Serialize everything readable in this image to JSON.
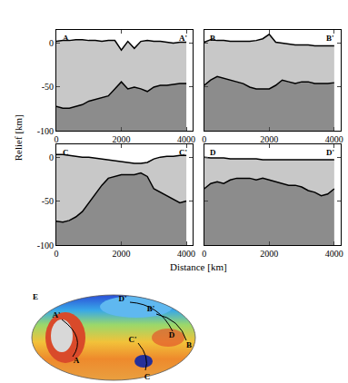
{
  "chart_data": [
    {
      "type": "line",
      "start_label": "A",
      "end_label": "A'",
      "x": [
        0,
        200,
        400,
        600,
        800,
        1000,
        1200,
        1400,
        1600,
        1800,
        2000,
        2200,
        2400,
        2600,
        2800,
        3000,
        3200,
        3400,
        3600,
        3800,
        4000
      ],
      "series": [
        {
          "color": "#c8c8c8",
          "values": [
            2,
            3,
            3,
            4,
            4,
            3,
            3,
            2,
            3,
            3,
            -8,
            2,
            -6,
            2,
            3,
            2,
            2,
            1,
            0,
            1,
            1
          ]
        },
        {
          "color": "#8c8c8c",
          "values": [
            -72,
            -74,
            -74,
            -72,
            -70,
            -66,
            -64,
            -62,
            -60,
            -52,
            -44,
            -52,
            -50,
            -52,
            -55,
            -50,
            -48,
            -48,
            -47,
            -46,
            -46
          ]
        }
      ],
      "xlim": [
        0,
        4200
      ],
      "ylim": [
        -100,
        15
      ],
      "xticks": [
        0,
        2000,
        4000
      ],
      "yticks": [
        -100,
        -50,
        0
      ]
    },
    {
      "type": "line",
      "start_label": "B",
      "end_label": "B'",
      "x": [
        0,
        200,
        400,
        600,
        800,
        1000,
        1200,
        1400,
        1600,
        1800,
        2000,
        2200,
        2400,
        2600,
        2800,
        3000,
        3200,
        3400,
        3600,
        3800,
        4000
      ],
      "series": [
        {
          "color": "#c8c8c8",
          "values": [
            1,
            4,
            3,
            3,
            2,
            2,
            2,
            2,
            3,
            5,
            10,
            1,
            0,
            -1,
            -2,
            -2,
            -2,
            -3,
            -3,
            -3,
            -3
          ]
        },
        {
          "color": "#8c8c8c",
          "values": [
            -48,
            -42,
            -38,
            -40,
            -42,
            -44,
            -46,
            -50,
            -52,
            -52,
            -52,
            -48,
            -42,
            -44,
            -46,
            -44,
            -44,
            -46,
            -46,
            -46,
            -45
          ]
        }
      ],
      "xlim": [
        0,
        4200
      ],
      "ylim": [
        -100,
        15
      ],
      "xticks": [
        0,
        2000,
        4000
      ],
      "yticks": [
        -100,
        -50,
        0
      ]
    },
    {
      "type": "line",
      "start_label": "C",
      "end_label": "C'",
      "x": [
        0,
        200,
        400,
        600,
        800,
        1000,
        1200,
        1400,
        1600,
        1800,
        2000,
        2200,
        2400,
        2600,
        2800,
        3000,
        3200,
        3400,
        3600,
        3800,
        4000
      ],
      "series": [
        {
          "color": "#c8c8c8",
          "values": [
            3,
            3,
            2,
            1,
            0,
            0,
            -1,
            -2,
            -3,
            -4,
            -5,
            -6,
            -7,
            -7,
            -6,
            -2,
            0,
            1,
            1,
            2,
            2
          ]
        },
        {
          "color": "#8c8c8c",
          "values": [
            -73,
            -74,
            -72,
            -68,
            -62,
            -52,
            -42,
            -32,
            -24,
            -22,
            -20,
            -20,
            -20,
            -18,
            -22,
            -36,
            -40,
            -44,
            -48,
            -52,
            -50
          ]
        }
      ],
      "xlim": [
        0,
        4200
      ],
      "ylim": [
        -100,
        15
      ],
      "xticks": [
        0,
        2000,
        4000
      ],
      "yticks": [
        -100,
        -50,
        0
      ]
    },
    {
      "type": "line",
      "start_label": "D",
      "end_label": "D'",
      "x": [
        0,
        200,
        400,
        600,
        800,
        1000,
        1200,
        1400,
        1600,
        1800,
        2000,
        2200,
        2400,
        2600,
        2800,
        3000,
        3200,
        3400,
        3600,
        3800,
        4000
      ],
      "series": [
        {
          "color": "#c8c8c8",
          "values": [
            0,
            -1,
            -1,
            -1,
            -2,
            -2,
            -2,
            -2,
            -2,
            -3,
            -3,
            -3,
            -3,
            -3,
            -3,
            -3,
            -3,
            -3,
            -3,
            -3,
            -3
          ]
        },
        {
          "color": "#8c8c8c",
          "values": [
            -36,
            -30,
            -28,
            -30,
            -26,
            -24,
            -24,
            -24,
            -26,
            -24,
            -26,
            -28,
            -30,
            -32,
            -32,
            -34,
            -38,
            -40,
            -44,
            -42,
            -36
          ]
        }
      ],
      "xlim": [
        0,
        4200
      ],
      "ylim": [
        -100,
        15
      ],
      "xticks": [
        0,
        2000,
        4000
      ],
      "yticks": [
        -100,
        -50,
        0
      ]
    }
  ],
  "figure": {
    "xlabel": "Distance [km]",
    "ylabel": "Relief [km]"
  },
  "map": {
    "label": "E"
  }
}
